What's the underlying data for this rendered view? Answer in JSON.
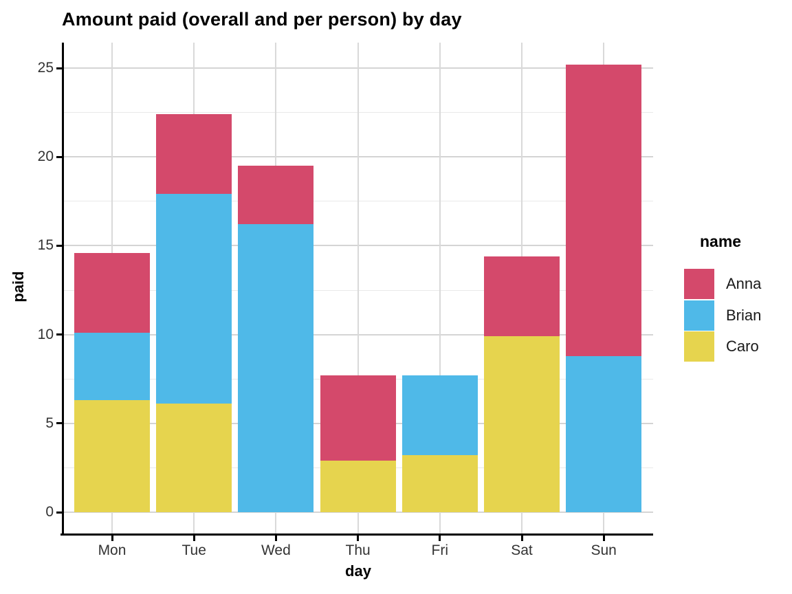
{
  "chart_data": {
    "type": "bar",
    "stacked": true,
    "title": "Amount paid (overall and per person) by day",
    "xlabel": "day",
    "ylabel": "paid",
    "categories": [
      "Mon",
      "Tue",
      "Wed",
      "Thu",
      "Fri",
      "Sat",
      "Sun"
    ],
    "series": [
      {
        "name": "Anna",
        "color": "#D4496B",
        "values": [
          4.5,
          4.5,
          3.3,
          4.8,
          0,
          4.5,
          16.4
        ]
      },
      {
        "name": "Brian",
        "color": "#4FB9E8",
        "values": [
          3.8,
          11.8,
          16.2,
          0,
          4.5,
          0,
          8.8
        ]
      },
      {
        "name": "Caro",
        "color": "#E6D44E",
        "values": [
          6.3,
          6.1,
          0,
          2.9,
          3.2,
          9.9,
          0
        ]
      }
    ],
    "stack_order_bottom_to_top": [
      "Caro",
      "Brian",
      "Anna"
    ],
    "stack_totals": [
      14.6,
      22.4,
      19.5,
      7.7,
      7.7,
      14.4,
      25.2
    ],
    "y_ticks": [
      0,
      5,
      10,
      15,
      20,
      25
    ],
    "y_minor_ticks": [
      2.5,
      7.5,
      12.5,
      17.5,
      22.5
    ],
    "ylim": [
      0,
      25
    ],
    "y_range_rendered": [
      -1.2,
      26.4
    ],
    "grid": "horizontal major+minor, vertical major at category centers",
    "legend_title": "name",
    "legend_position": "right",
    "background": "#ffffff",
    "gridline_color_major": "#d4d4d4",
    "gridline_color_minor": "#e9e9e9",
    "axis_color": "#000000",
    "tick_label_color": "#333333"
  }
}
